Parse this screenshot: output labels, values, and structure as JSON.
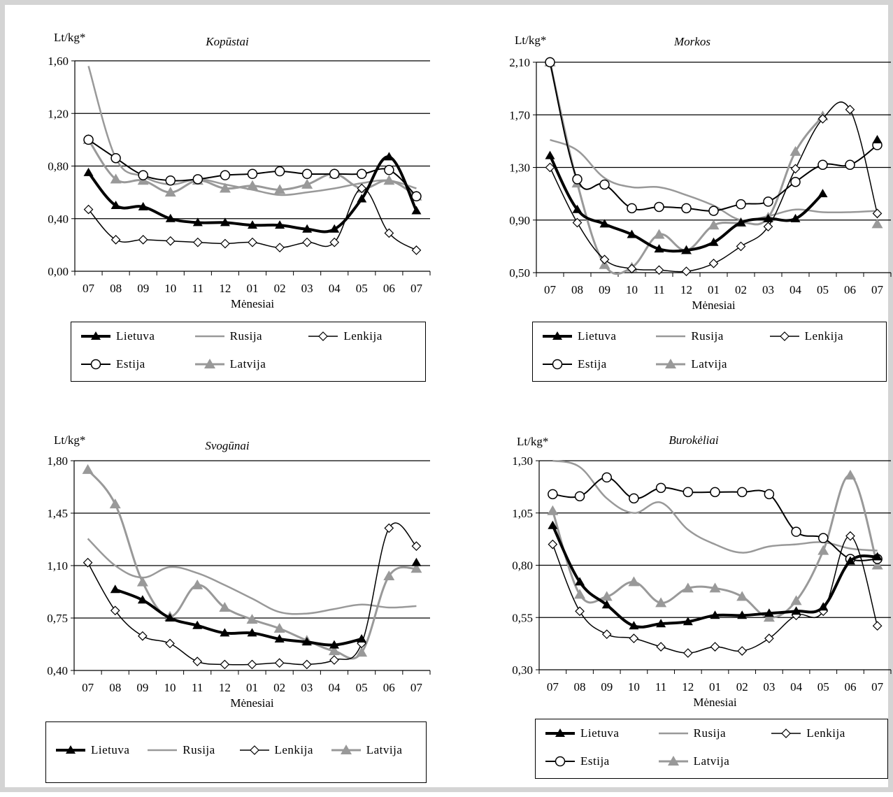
{
  "colors": {
    "black": "#000000",
    "gray": "#999999",
    "frame": "#d4d4d4"
  },
  "series_styles": {
    "Lietuva": {
      "color": "#000000",
      "width": 4,
      "marker": "triangle-filled"
    },
    "Rusija": {
      "color": "#999999",
      "width": 2.5,
      "marker": "none"
    },
    "Lenkija": {
      "color": "#000000",
      "width": 1.5,
      "marker": "diamond-open"
    },
    "Estija": {
      "color": "#000000",
      "width": 2,
      "marker": "circle-open"
    },
    "Latvija": {
      "color": "#999999",
      "width": 3,
      "marker": "triangle-gray"
    }
  },
  "chart_data": [
    {
      "type": "line",
      "title": "Kopūstai",
      "ylabel": "Lt/kg*",
      "xlabel": "Mėnesiai",
      "categories": [
        "07",
        "08",
        "09",
        "10",
        "11",
        "12",
        "01",
        "02",
        "03",
        "04",
        "05",
        "06",
        "07"
      ],
      "yticks": [
        "0,00",
        "0,40",
        "0,80",
        "1,20",
        "1,60"
      ],
      "ylim": [
        0,
        1.6
      ],
      "legend": [
        "Lietuva",
        "Rusija",
        "Lenkija",
        "Estija",
        "Latvija"
      ],
      "series": [
        {
          "name": "Lietuva",
          "values": [
            0.75,
            0.5,
            0.49,
            0.4,
            0.37,
            0.37,
            0.35,
            0.35,
            0.32,
            0.32,
            0.55,
            0.87,
            0.46
          ]
        },
        {
          "name": "Rusija",
          "values": [
            1.56,
            0.86,
            0.72,
            0.66,
            0.7,
            0.66,
            0.62,
            0.58,
            0.6,
            0.63,
            0.67,
            0.69,
            0.63
          ]
        },
        {
          "name": "Lenkija",
          "values": [
            0.47,
            0.24,
            0.24,
            0.23,
            0.22,
            0.21,
            0.22,
            0.18,
            0.22,
            0.22,
            0.63,
            0.29,
            0.16
          ]
        },
        {
          "name": "Estija",
          "values": [
            1.0,
            0.86,
            0.73,
            0.69,
            0.7,
            0.73,
            0.74,
            0.76,
            0.74,
            0.74,
            0.74,
            0.77,
            0.57
          ]
        },
        {
          "name": "Latvija",
          "values": [
            1.0,
            0.7,
            0.69,
            0.6,
            0.69,
            0.63,
            0.65,
            0.62,
            0.66,
            0.74,
            0.63,
            0.69,
            0.57
          ]
        }
      ]
    },
    {
      "type": "line",
      "title": "Morkos",
      "ylabel": "Lt/kg*",
      "xlabel": "Mėnesiai",
      "categories": [
        "07",
        "08",
        "09",
        "10",
        "11",
        "12",
        "01",
        "02",
        "03",
        "04",
        "05",
        "06",
        "07"
      ],
      "yticks": [
        "0,50",
        "0,90",
        "1,30",
        "1,70",
        "2,10"
      ],
      "ylim": [
        0.5,
        2.1
      ],
      "legend": [
        "Lietuva",
        "Rusija",
        "Lenkija",
        "Estija",
        "Latvija"
      ],
      "series": [
        {
          "name": "Lietuva",
          "values": [
            1.39,
            0.98,
            0.87,
            0.79,
            0.68,
            0.67,
            0.73,
            0.88,
            0.91,
            0.91,
            1.1,
            null,
            1.51
          ]
        },
        {
          "name": "Rusija",
          "values": [
            1.51,
            1.43,
            1.22,
            1.15,
            1.15,
            1.09,
            1.01,
            0.9,
            0.93,
            0.98,
            0.96,
            0.96,
            0.97
          ]
        },
        {
          "name": "Lenkija",
          "values": [
            1.3,
            0.88,
            0.6,
            0.53,
            0.52,
            0.51,
            0.57,
            0.7,
            0.85,
            1.29,
            1.67,
            1.74,
            0.95
          ]
        },
        {
          "name": "Estija",
          "values": [
            2.1,
            1.21,
            1.17,
            0.99,
            1.0,
            0.99,
            0.97,
            1.02,
            1.04,
            1.19,
            1.32,
            1.32,
            1.47
          ]
        },
        {
          "name": "Latvija",
          "values": [
            2.1,
            1.18,
            0.56,
            0.54,
            0.79,
            0.67,
            0.86,
            0.88,
            0.92,
            1.42,
            1.69,
            null,
            0.87
          ]
        }
      ]
    },
    {
      "type": "line",
      "title": "Svogūnai",
      "ylabel": "Lt/kg*",
      "xlabel": "Mėnesiai",
      "categories": [
        "07",
        "08",
        "09",
        "10",
        "11",
        "12",
        "01",
        "02",
        "03",
        "04",
        "05",
        "06",
        "07"
      ],
      "yticks": [
        "0,40",
        "0,75",
        "1,10",
        "1,45",
        "1,80"
      ],
      "ylim": [
        0.4,
        1.8
      ],
      "legend": [
        "Lietuva",
        "Rusija",
        "Lenkija",
        "Latvija"
      ],
      "series": [
        {
          "name": "Lietuva",
          "values": [
            null,
            0.94,
            0.87,
            0.75,
            0.7,
            0.65,
            0.65,
            0.61,
            0.59,
            0.57,
            0.61,
            null,
            1.12
          ]
        },
        {
          "name": "Rusija",
          "values": [
            1.28,
            1.1,
            1.02,
            1.09,
            1.05,
            0.97,
            0.88,
            0.79,
            0.78,
            0.81,
            0.84,
            0.82,
            0.83
          ]
        },
        {
          "name": "Lenkija",
          "values": [
            1.12,
            0.8,
            0.63,
            0.58,
            0.46,
            0.44,
            0.44,
            0.45,
            0.44,
            0.47,
            0.58,
            1.35,
            1.23
          ]
        },
        {
          "name": "Latvija",
          "values": [
            1.74,
            1.51,
            0.99,
            0.76,
            0.97,
            0.82,
            0.74,
            0.68,
            0.6,
            0.53,
            0.52,
            1.03,
            1.08
          ]
        }
      ]
    },
    {
      "type": "line",
      "title": "Burokėliai",
      "ylabel": "Lt/kg*",
      "xlabel": "Mėnesiai",
      "categories": [
        "07",
        "08",
        "09",
        "10",
        "11",
        "12",
        "01",
        "02",
        "03",
        "04",
        "05",
        "06",
        "07"
      ],
      "yticks": [
        "0,30",
        "0,55",
        "0,80",
        "1,05",
        "1,30"
      ],
      "ylim": [
        0.3,
        1.3
      ],
      "legend": [
        "Lietuva",
        "Rusija",
        "Lenkija",
        "Estija",
        "Latvija"
      ],
      "series": [
        {
          "name": "Lietuva",
          "values": [
            0.99,
            0.72,
            0.61,
            0.51,
            0.52,
            0.53,
            0.56,
            0.56,
            0.57,
            0.58,
            0.6,
            0.82,
            0.84
          ]
        },
        {
          "name": "Rusija",
          "values": [
            1.3,
            1.27,
            1.12,
            1.05,
            1.1,
            0.97,
            0.9,
            0.86,
            0.89,
            0.9,
            0.91,
            0.88,
            0.87
          ]
        },
        {
          "name": "Lenkija",
          "values": [
            0.9,
            0.58,
            0.47,
            0.45,
            0.41,
            0.38,
            0.41,
            0.39,
            0.45,
            0.56,
            0.58,
            0.94,
            0.51
          ]
        },
        {
          "name": "Estija",
          "values": [
            1.14,
            1.13,
            1.22,
            1.12,
            1.17,
            1.15,
            1.15,
            1.15,
            1.14,
            0.96,
            0.93,
            0.83,
            0.83
          ]
        },
        {
          "name": "Latvija",
          "values": [
            1.06,
            0.66,
            0.65,
            0.72,
            0.62,
            0.69,
            0.69,
            0.65,
            0.55,
            0.63,
            0.87,
            1.23,
            0.8
          ]
        }
      ]
    }
  ]
}
